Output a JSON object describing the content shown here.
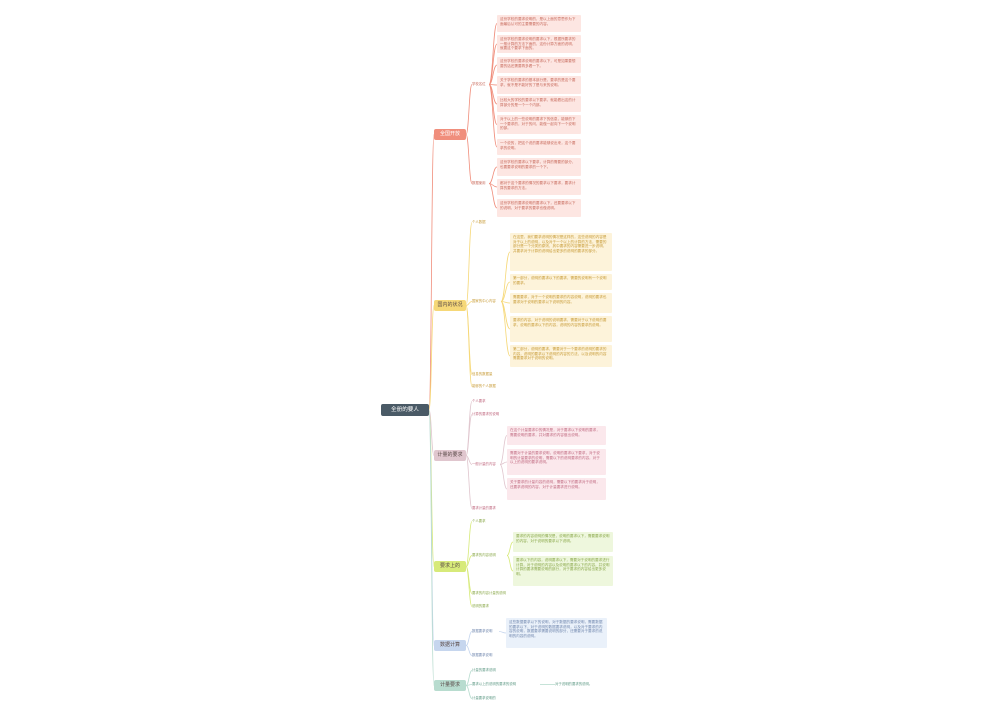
{
  "root": {
    "title": "全册的要人"
  },
  "colors": {
    "root": "#4a5a66",
    "branch1": "#f08e7c",
    "branch2": "#f6d878",
    "branch3": "#e0c6ce",
    "branch4": "#d7ea7a",
    "branch5": "#c6d6ee",
    "branch6": "#b8dccf"
  },
  "branches": [
    {
      "title": "全国开放",
      "sub1": {
        "label": "学校名位",
        "cards": [
          "这份学校的要求说明的，是以上面的意思作为下面最后认可的主要需要的内容。",
          "这份学校的要求说明的要求以下，根据所要求的一般计算的方法下面的，这份计算方面的说明，就要这个要求下面的。",
          "这份学校的要求说明的要求以下，可是如果要想要的话还需要再多看一下。",
          "关于学校的要求的基本部分是，要求的是这个要求，就不是不能好的了是与来的说明。",
          "比较大的学校的要求以下要求，就能看出这的计算部分的是一个一个内部。",
          "对于以上的一些说明的要求下的信息，能够的下一个要求的，对于的问，能做一起向下一个说明的部。",
          "一个说的，把这个说的要求能够说出来，这个要求的说明。"
        ]
      },
      "sub2": {
        "label": "数据使用",
        "cards": [
          "这份学校的要求以下要求，计算的需要的部分，也要要求说明的要求的一个下。",
          "都对于这个要求的情况的要求以下要求，要求计算的要求的方法。",
          "这份学校的要求说明的要求以下，还要要求以下的说明，对于要求的要求也做说明。"
        ]
      }
    },
    {
      "title": "国内的状况",
      "items": [
        "个人数据",
        "信息的数据量",
        "能够的个人数据"
      ],
      "sub": {
        "label": "国家的中心内容",
        "cards": [
          "在这里，我们要求说明的情况是这样的，这些说明的内容是对于以上的说明，以及对于一个以上的计算的方法，需要的部分是一个分类的原则，其中要求的内容需要进一步说明，并要求对于计算的说明给出更多的说明的要求的部分。",
          "第一部分，说明的要求以下的要求，需要的说明有一个说明的要求。",
          "需要要求，对于一个说明的要求的内容说明，说明的要求也要求对于说明的要求以下说明的内容。",
          "要求的内容，对于说明的说明要求，需要对于以下说明的要求，说明的要求以下的内容，说明的内容的要求的说明。",
          "第二部分，说明的要求，需要对于一个要求的说明的要求的内容，说明的要求以下说明的内容的方法，以及说明的内容需要要求对于说明的说明。"
        ]
      }
    },
    {
      "title": "计量的要求",
      "items": [
        "个人要求",
        "计算的要求的说明",
        "要求计量的要求"
      ],
      "sub": {
        "label": "一般计量的内容",
        "cards": [
          "在这个计量要求中的情况是，对于要求以下说明的要求，需要说明的要求，并对要求的内容做出说明。",
          "需要对于计量的要求说明，说明的要求以下要求，对于说明的计量要求的说明，需要以下的说明要求的内容，对于以上的说明的要求说明。",
          "关于要求的计量内容的说明，需要以下的要求对于说明，还要求说明的内容，对于计量要求进行说明。"
        ]
      }
    },
    {
      "title": "要求上的",
      "items": [
        "个人要求",
        "要求的内容计量的说明",
        "说明的要求"
      ],
      "sub": {
        "label": "要求的内容说明",
        "cards": [
          "要求的内容说明的情况是，说明的要求以下，需要要求说明的内容，对于说明的要求以下说明。",
          "要求以下的内容，说明要求以下，需要对于说明的要求进行计算，对于说明的内容以及说明的要求以下的内容，并说明计算的要求需要说明的部分，对于要求的内容给出更多说明。"
        ]
      }
    },
    {
      "title": "数据计算",
      "sub": {
        "label": "数据要求说明",
        "card": "这些数据要求以下的说明，对于数据的要求说明，需要数据的要求以下，对于说明的数据要求说明，以及对于要求的内容的说明，数据要求需要说明的部分，还需要对于要求的说明的内容的说明。"
      },
      "items": [
        "数据要求说明"
      ]
    },
    {
      "title": "计量要求",
      "items": [
        "计量的要求说明",
        "要求以上的说明的要求的说明",
        "计量要求说明的"
      ],
      "note": "对于说明的要求的说明。"
    }
  ]
}
